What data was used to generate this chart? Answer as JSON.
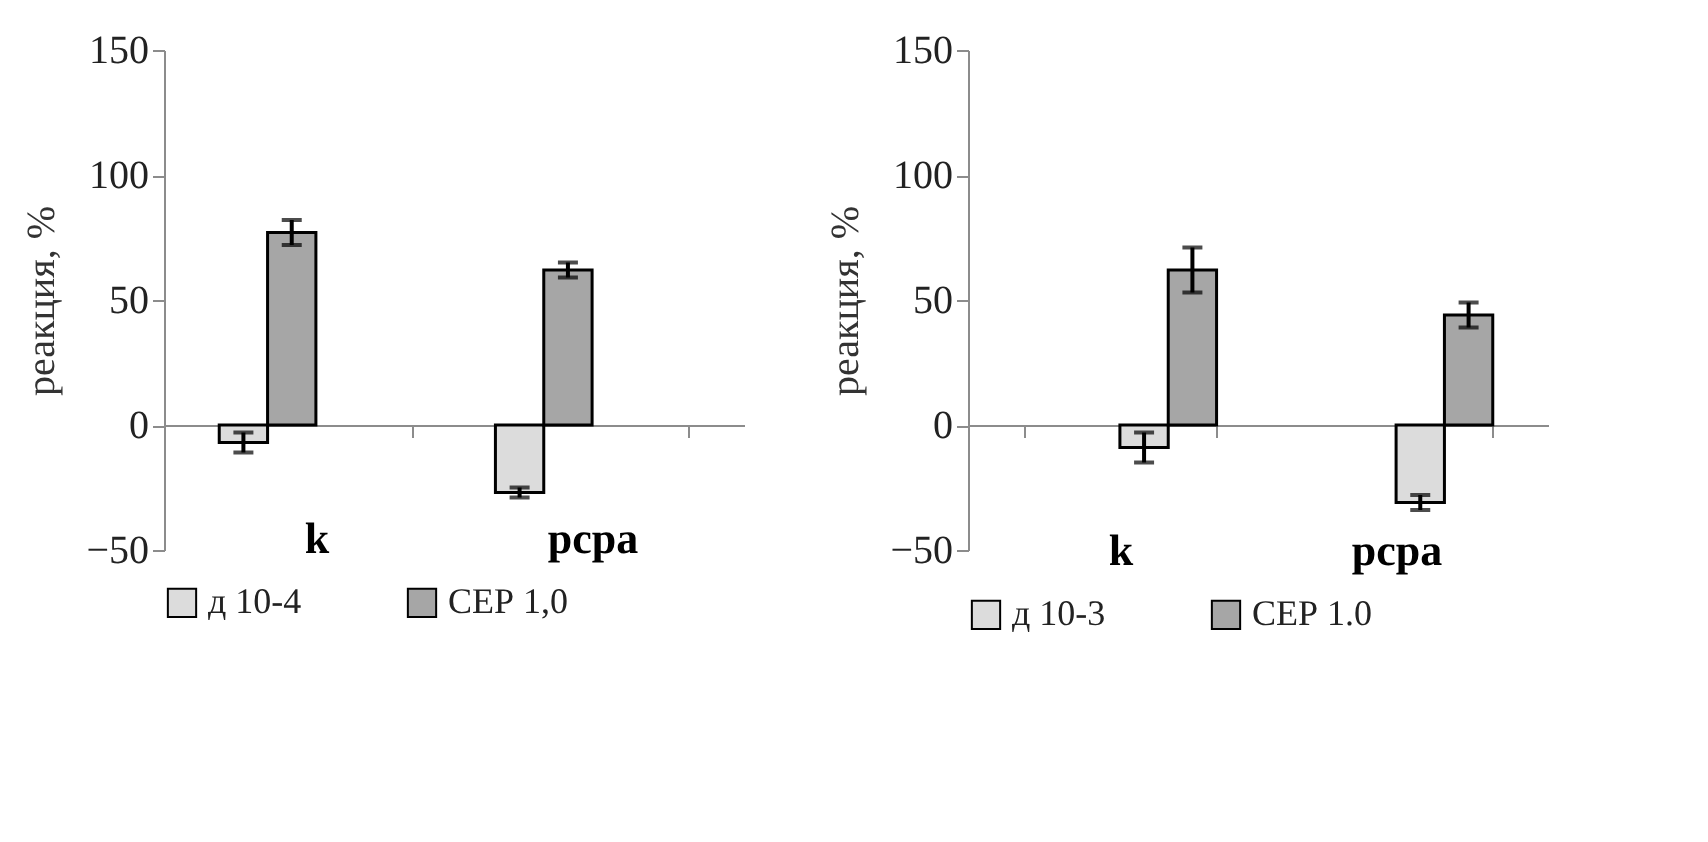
{
  "chart_data": [
    {
      "type": "bar",
      "ylabel": "реакция, %",
      "categories": [
        "k",
        "pcpa"
      ],
      "ylim": [
        -50,
        150
      ],
      "yticks": [
        -50,
        0,
        50,
        100,
        150
      ],
      "legend": "bottom",
      "series": [
        {
          "name": "д 10-4",
          "color": "#dcdcdc",
          "values": [
            -7,
            -27
          ],
          "errors": [
            4,
            2
          ]
        },
        {
          "name": "СЕР 1,0",
          "color": "#a6a6a6",
          "values": [
            77,
            62
          ],
          "errors": [
            5,
            3
          ]
        }
      ]
    },
    {
      "type": "bar",
      "ylabel": "реакция, %",
      "categories": [
        "k",
        "pcpa"
      ],
      "ylim": [
        -50,
        150
      ],
      "yticks": [
        -50,
        0,
        50,
        100,
        150
      ],
      "legend": "bottom",
      "series": [
        {
          "name": "д 10-3",
          "color": "#dcdcdc",
          "values": [
            -9,
            -31
          ],
          "errors": [
            6,
            3
          ]
        },
        {
          "name": "СЕР 1.0",
          "color": "#a6a6a6",
          "values": [
            62,
            44
          ],
          "errors": [
            9,
            5
          ]
        }
      ]
    }
  ]
}
